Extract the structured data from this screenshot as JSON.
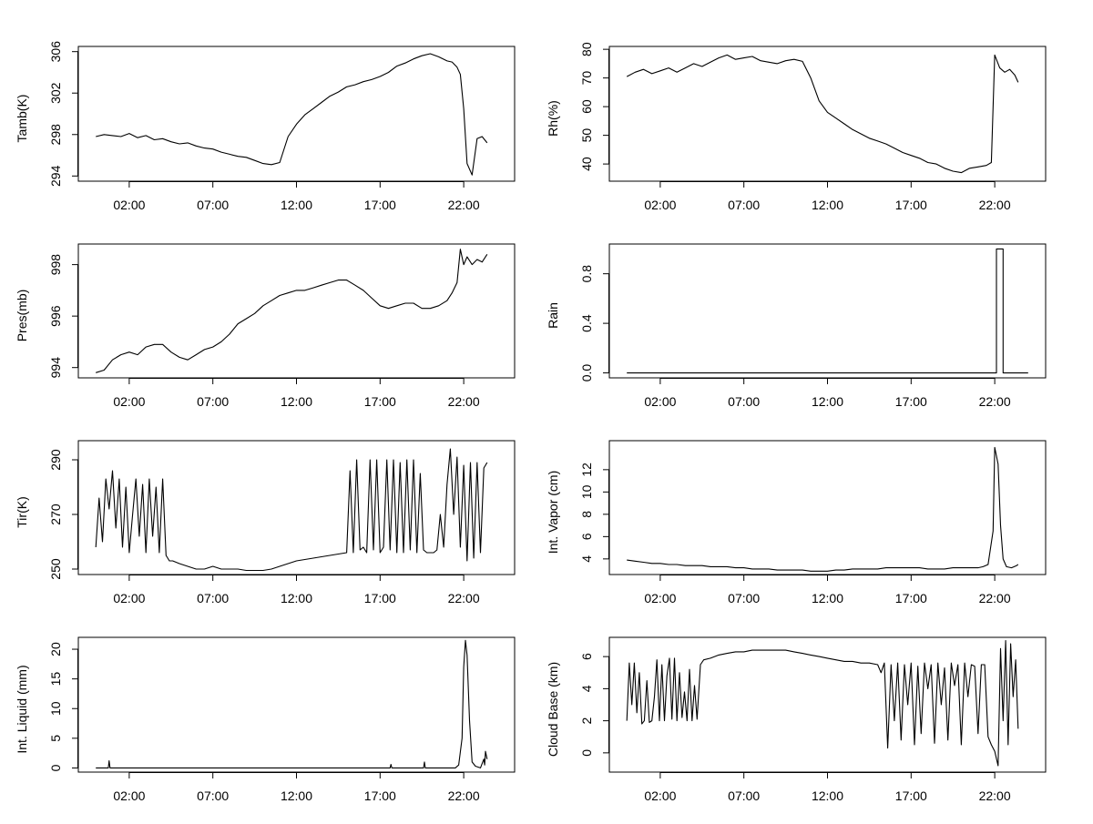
{
  "chart_data": [
    {
      "type": "line",
      "ylabel": "Tamb(K)",
      "xticks": [
        "02:00",
        "07:00",
        "12:00",
        "17:00",
        "22:00"
      ],
      "yticks": [
        294,
        298,
        302,
        306
      ],
      "xlim": [
        0,
        24
      ],
      "ylim": [
        293.5,
        306.5
      ],
      "x": [
        0,
        0.5,
        1,
        1.5,
        2,
        2.5,
        3,
        3.5,
        4,
        4.5,
        5,
        5.5,
        6,
        6.5,
        7,
        7.5,
        8,
        8.5,
        9,
        9.5,
        10,
        10.5,
        11,
        11.5,
        12,
        12.5,
        13,
        13.5,
        14,
        14.5,
        15,
        15.5,
        16,
        16.5,
        17,
        17.5,
        18,
        18.5,
        19,
        19.5,
        20,
        20.5,
        21,
        21.3,
        21.6,
        21.8,
        22,
        22.2,
        22.5,
        22.8,
        23.1,
        23.4
      ],
      "series": [
        {
          "values": [
            297.8,
            298.0,
            297.9,
            297.8,
            298.1,
            297.7,
            297.9,
            297.5,
            297.6,
            297.3,
            297.1,
            297.2,
            296.9,
            296.7,
            296.6,
            296.3,
            296.1,
            295.9,
            295.8,
            295.5,
            295.2,
            295.1,
            295.3,
            297.8,
            299.0,
            299.9,
            300.5,
            301.1,
            301.7,
            302.1,
            302.6,
            302.8,
            303.1,
            303.3,
            303.6,
            304.0,
            304.6,
            304.9,
            305.3,
            305.6,
            305.8,
            305.5,
            305.1,
            305.0,
            304.5,
            303.8,
            300.5,
            295.2,
            294.1,
            297.6,
            297.8,
            297.2
          ]
        }
      ]
    },
    {
      "type": "line",
      "ylabel": "Rh(%)",
      "xticks": [
        "02:00",
        "07:00",
        "12:00",
        "17:00",
        "22:00"
      ],
      "yticks": [
        40,
        50,
        60,
        70,
        80
      ],
      "xlim": [
        0,
        24
      ],
      "ylim": [
        34,
        81
      ],
      "x": [
        0,
        0.5,
        1,
        1.5,
        2,
        2.5,
        3,
        3.5,
        4,
        4.5,
        5,
        5.5,
        6,
        6.5,
        7,
        7.5,
        8,
        8.5,
        9,
        9.5,
        10,
        10.5,
        11,
        11.5,
        12,
        12.5,
        13,
        13.5,
        14,
        14.5,
        15,
        15.5,
        16,
        16.5,
        17,
        17.5,
        18,
        18.5,
        19,
        19.5,
        20,
        20.5,
        21,
        21.5,
        21.8,
        22,
        22.3,
        22.6,
        22.9,
        23.2,
        23.4
      ],
      "series": [
        {
          "values": [
            70.5,
            72.0,
            73.0,
            71.5,
            72.5,
            73.5,
            72.0,
            73.5,
            75.0,
            74.0,
            75.5,
            77.0,
            78.0,
            76.5,
            77.0,
            77.5,
            76.0,
            75.5,
            75.0,
            76.0,
            76.5,
            75.8,
            70.0,
            62.0,
            58.0,
            56.0,
            54.0,
            52.0,
            50.5,
            49.0,
            48.0,
            47.0,
            45.5,
            44.0,
            43.0,
            42.0,
            40.5,
            40.0,
            38.5,
            37.5,
            37.0,
            38.5,
            39.0,
            39.5,
            40.5,
            78.0,
            73.5,
            72.0,
            73.0,
            71.0,
            68.5
          ]
        }
      ]
    },
    {
      "type": "line",
      "ylabel": "Pres(mb)",
      "xticks": [
        "02:00",
        "07:00",
        "12:00",
        "17:00",
        "22:00"
      ],
      "yticks": [
        994,
        996,
        998
      ],
      "xlim": [
        0,
        24
      ],
      "ylim": [
        993.6,
        998.8
      ],
      "x": [
        0,
        0.5,
        1,
        1.5,
        2,
        2.5,
        3,
        3.5,
        4,
        4.5,
        5,
        5.5,
        6,
        6.5,
        7,
        7.5,
        8,
        8.5,
        9,
        9.5,
        10,
        10.5,
        11,
        11.5,
        12,
        12.5,
        13,
        13.5,
        14,
        14.5,
        15,
        15.5,
        16,
        16.5,
        17,
        17.5,
        18,
        18.5,
        19,
        19.5,
        20,
        20.5,
        21,
        21.3,
        21.6,
        21.8,
        22,
        22.2,
        22.5,
        22.8,
        23.1,
        23.4
      ],
      "series": [
        {
          "values": [
            993.8,
            993.9,
            994.3,
            994.5,
            994.6,
            994.5,
            994.8,
            994.9,
            994.9,
            994.6,
            994.4,
            994.3,
            994.5,
            994.7,
            994.8,
            995.0,
            995.3,
            995.7,
            995.9,
            996.1,
            996.4,
            996.6,
            996.8,
            996.9,
            997.0,
            997.0,
            997.1,
            997.2,
            997.3,
            997.4,
            997.4,
            997.2,
            997.0,
            996.7,
            996.4,
            996.3,
            996.4,
            996.5,
            996.5,
            996.3,
            996.3,
            996.4,
            996.6,
            996.9,
            997.3,
            998.6,
            998.0,
            998.3,
            998.0,
            998.2,
            998.1,
            998.4
          ]
        }
      ]
    },
    {
      "type": "line",
      "ylabel": "Rain",
      "xticks": [
        "02:00",
        "07:00",
        "12:00",
        "17:00",
        "22:00"
      ],
      "yticks": [
        "0.0",
        "0.4",
        "0.8"
      ],
      "xlim": [
        0,
        24
      ],
      "ylim": [
        -0.04,
        1.04
      ],
      "x": [
        0,
        22.1,
        22.1,
        22.5,
        22.5,
        24
      ],
      "series": [
        {
          "values": [
            0,
            0,
            1,
            1,
            0,
            0
          ]
        }
      ]
    },
    {
      "type": "line",
      "ylabel": "Tir(K)",
      "xticks": [
        "02:00",
        "07:00",
        "12:00",
        "17:00",
        "22:00"
      ],
      "yticks": [
        250,
        270,
        290
      ],
      "xlim": [
        0,
        24
      ],
      "ylim": [
        248,
        297
      ],
      "x": [
        0,
        0.2,
        0.4,
        0.6,
        0.8,
        1.0,
        1.2,
        1.4,
        1.6,
        1.8,
        2.0,
        2.2,
        2.4,
        2.6,
        2.8,
        3.0,
        3.2,
        3.4,
        3.6,
        3.8,
        4.0,
        4.2,
        4.4,
        4.6,
        5,
        5.5,
        6,
        6.5,
        7,
        7.5,
        8,
        8.5,
        9,
        9.5,
        10,
        10.5,
        11,
        11.5,
        12,
        12.5,
        13,
        13.5,
        14,
        14.5,
        15,
        15.2,
        15.4,
        15.6,
        15.8,
        16.0,
        16.2,
        16.4,
        16.6,
        16.8,
        17.0,
        17.2,
        17.4,
        17.6,
        17.8,
        18.0,
        18.2,
        18.4,
        18.6,
        18.8,
        19.0,
        19.2,
        19.4,
        19.6,
        19.8,
        20.0,
        20.2,
        20.4,
        20.6,
        20.8,
        21.0,
        21.2,
        21.4,
        21.6,
        21.8,
        22.0,
        22.2,
        22.4,
        22.6,
        22.8,
        23.0,
        23.2,
        23.4
      ],
      "series": [
        {
          "values": [
            258,
            276,
            260,
            283,
            272,
            286,
            265,
            283,
            258,
            280,
            256,
            270,
            283,
            262,
            281,
            256,
            283,
            262,
            280,
            256,
            283,
            255,
            253,
            253,
            252,
            251,
            250,
            250,
            251,
            250,
            250,
            250,
            249.5,
            249.5,
            249.5,
            250,
            251,
            252,
            253,
            253.5,
            254,
            254.5,
            255,
            255.5,
            256,
            286,
            256,
            290,
            257,
            258,
            256,
            290,
            257,
            290,
            256,
            258,
            290,
            257,
            290,
            256,
            289,
            256,
            290,
            257,
            290,
            256,
            285,
            257,
            256,
            256,
            256,
            257,
            270,
            258,
            281,
            294,
            270,
            291,
            258,
            288,
            253,
            289,
            254,
            289,
            256,
            287,
            289
          ]
        }
      ]
    },
    {
      "type": "line",
      "ylabel": "Int. Vapor (cm)",
      "xticks": [
        "02:00",
        "07:00",
        "12:00",
        "17:00",
        "22:00"
      ],
      "yticks": [
        4,
        6,
        8,
        10,
        12
      ],
      "xlim": [
        0,
        24
      ],
      "ylim": [
        2.6,
        14.6
      ],
      "x": [
        0,
        0.5,
        1,
        1.5,
        2,
        2.5,
        3,
        3.5,
        4,
        4.5,
        5,
        5.5,
        6,
        6.5,
        7,
        7.5,
        8,
        8.5,
        9,
        9.5,
        10,
        10.5,
        11,
        11.5,
        12,
        12.5,
        13,
        13.5,
        14,
        14.5,
        15,
        15.5,
        16,
        16.5,
        17,
        17.5,
        18,
        18.5,
        19,
        19.5,
        20,
        20.5,
        21,
        21.3,
        21.6,
        21.9,
        22.0,
        22.2,
        22.35,
        22.5,
        22.7,
        23.0,
        23.3,
        23.4
      ],
      "series": [
        {
          "values": [
            3.9,
            3.8,
            3.7,
            3.6,
            3.6,
            3.5,
            3.5,
            3.4,
            3.4,
            3.4,
            3.3,
            3.3,
            3.3,
            3.2,
            3.2,
            3.1,
            3.1,
            3.1,
            3.0,
            3.0,
            3.0,
            3.0,
            2.9,
            2.9,
            2.9,
            3.0,
            3.0,
            3.1,
            3.1,
            3.1,
            3.1,
            3.2,
            3.2,
            3.2,
            3.2,
            3.2,
            3.1,
            3.1,
            3.1,
            3.2,
            3.2,
            3.2,
            3.2,
            3.3,
            3.5,
            6.5,
            14.0,
            12.5,
            7.0,
            4.0,
            3.3,
            3.2,
            3.4,
            3.5
          ]
        }
      ]
    },
    {
      "type": "line",
      "ylabel": "Int. Liquid (mm)",
      "xticks": [
        "02:00",
        "07:00",
        "12:00",
        "17:00",
        "22:00"
      ],
      "yticks": [
        0,
        5,
        10,
        15,
        20
      ],
      "xlim": [
        0,
        24
      ],
      "ylim": [
        -0.7,
        22
      ],
      "x": [
        0,
        0.75,
        0.8,
        0.85,
        4,
        16,
        17.6,
        17.65,
        17.7,
        19.6,
        19.65,
        19.7,
        21.5,
        21.7,
        21.9,
        22.0,
        22.1,
        22.2,
        22.35,
        22.5,
        22.7,
        23.0,
        23.2,
        23.25,
        23.3,
        23.4
      ],
      "series": [
        {
          "values": [
            0,
            0,
            1.2,
            0,
            0,
            0,
            0,
            0.6,
            0,
            0,
            1.0,
            0,
            0,
            0.5,
            5.0,
            17.0,
            21.5,
            19.0,
            8.0,
            1.0,
            0.3,
            0,
            1.5,
            0.5,
            2.8,
            1.5
          ]
        }
      ]
    },
    {
      "type": "line",
      "ylabel": "Cloud Base (km)",
      "xticks": [
        "02:00",
        "07:00",
        "12:00",
        "17:00",
        "22:00"
      ],
      "yticks": [
        0,
        2,
        4,
        6
      ],
      "xlim": [
        0,
        24
      ],
      "ylim": [
        -1.2,
        7.2
      ],
      "x": [
        0,
        0.15,
        0.3,
        0.45,
        0.6,
        0.75,
        0.9,
        1.05,
        1.2,
        1.35,
        1.5,
        1.65,
        1.8,
        1.95,
        2.1,
        2.25,
        2.4,
        2.55,
        2.7,
        2.85,
        3.0,
        3.15,
        3.3,
        3.45,
        3.6,
        3.75,
        3.9,
        4.05,
        4.2,
        4.4,
        4.6,
        5,
        5.5,
        6,
        6.5,
        7,
        7.5,
        8,
        8.5,
        9,
        9.5,
        10,
        10.5,
        11,
        11.5,
        12,
        12.5,
        13,
        13.5,
        14,
        14.5,
        15,
        15.2,
        15.4,
        15.6,
        15.8,
        16.0,
        16.2,
        16.4,
        16.6,
        16.8,
        17.0,
        17.2,
        17.4,
        17.6,
        17.8,
        18.0,
        18.2,
        18.4,
        18.6,
        18.8,
        19.0,
        19.2,
        19.4,
        19.6,
        19.8,
        20.0,
        20.2,
        20.4,
        20.6,
        20.8,
        21.0,
        21.2,
        21.4,
        21.6,
        21.8,
        22.0,
        22.2,
        22.35,
        22.5,
        22.65,
        22.8,
        22.95,
        23.1,
        23.25,
        23.4
      ],
      "series": [
        {
          "values": [
            2.0,
            5.6,
            3.0,
            5.6,
            2.5,
            5.0,
            1.8,
            2.0,
            4.5,
            1.9,
            2.0,
            3.5,
            5.8,
            2.0,
            5.5,
            2.0,
            4.8,
            5.9,
            2.1,
            5.9,
            2.0,
            5.0,
            2.2,
            3.8,
            2.0,
            5.2,
            2.0,
            4.2,
            2.1,
            5.5,
            5.8,
            5.9,
            6.1,
            6.2,
            6.3,
            6.3,
            6.4,
            6.4,
            6.4,
            6.4,
            6.4,
            6.3,
            6.2,
            6.1,
            6.0,
            5.9,
            5.8,
            5.7,
            5.7,
            5.6,
            5.6,
            5.5,
            5.0,
            5.6,
            0.3,
            5.5,
            2.0,
            5.6,
            0.8,
            5.5,
            3.0,
            5.6,
            0.5,
            5.4,
            1.2,
            5.6,
            4.0,
            5.5,
            0.6,
            5.6,
            3.0,
            5.3,
            0.8,
            5.6,
            4.2,
            5.5,
            0.5,
            5.6,
            3.5,
            5.5,
            5.4,
            1.2,
            5.5,
            5.5,
            1.0,
            0.5,
            0.1,
            -0.8,
            6.5,
            2.0,
            7.0,
            0.5,
            6.8,
            3.5,
            5.8,
            1.5
          ]
        }
      ]
    }
  ]
}
